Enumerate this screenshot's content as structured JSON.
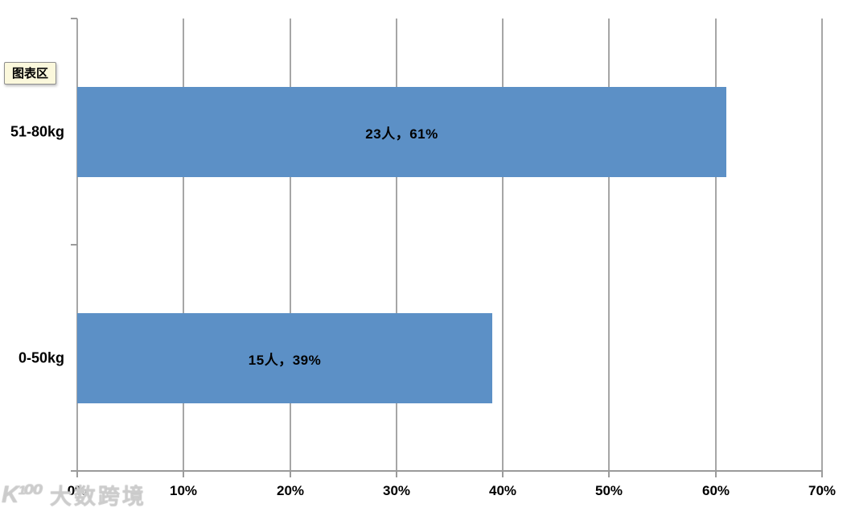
{
  "tooltip": {
    "text": "图表区"
  },
  "watermark": {
    "logo": "K¹⁰⁰",
    "text": "大数跨境"
  },
  "chart_data": {
    "type": "bar",
    "orientation": "horizontal",
    "title": "",
    "xlabel": "",
    "ylabel": "",
    "categories": [
      "51-80kg",
      "0-50kg"
    ],
    "counts": [
      23,
      15
    ],
    "values_percent": [
      61,
      39
    ],
    "data_labels": [
      "23人，61%",
      "15人，39%"
    ],
    "x_ticks": [
      "0%",
      "10%",
      "20%",
      "30%",
      "40%",
      "50%",
      "60%",
      "70%"
    ],
    "xlim": [
      0,
      70
    ],
    "grid": "vertical-only",
    "legend_position": "none",
    "colors": {
      "bar": "#5c90c6",
      "gridline": "#a6a6a6",
      "axis": "#9b9b9b",
      "text": "#000000",
      "tooltip_bg": "#fbf8dc"
    }
  }
}
